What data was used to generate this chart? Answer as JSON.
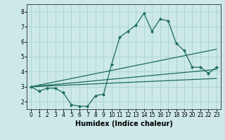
{
  "xlabel": "Humidex (Indice chaleur)",
  "bg_color": "#cce8e8",
  "grid_color": "#aed4d4",
  "line_color": "#1a6b5a",
  "line1_x": [
    0,
    1,
    2,
    3,
    4,
    5,
    6,
    7,
    8,
    9,
    10,
    11,
    12,
    13,
    14,
    15,
    16,
    17,
    18,
    19,
    20,
    21,
    22,
    23
  ],
  "line1_y": [
    3.0,
    2.7,
    2.9,
    2.9,
    2.6,
    1.8,
    1.7,
    1.7,
    2.4,
    2.5,
    4.5,
    6.3,
    6.7,
    7.1,
    7.9,
    6.7,
    7.5,
    7.4,
    5.9,
    5.4,
    4.3,
    4.3,
    3.9,
    4.3
  ],
  "line2_x": [
    0,
    23
  ],
  "line2_y": [
    3.0,
    5.5
  ],
  "line3_x": [
    0,
    23
  ],
  "line3_y": [
    3.0,
    3.55
  ],
  "line4_x": [
    0,
    23
  ],
  "line4_y": [
    3.0,
    4.15
  ],
  "xlim": [
    -0.5,
    23.5
  ],
  "ylim": [
    1.5,
    8.5
  ],
  "xticks": [
    0,
    1,
    2,
    3,
    4,
    5,
    6,
    7,
    8,
    9,
    10,
    11,
    12,
    13,
    14,
    15,
    16,
    17,
    18,
    19,
    20,
    21,
    22,
    23
  ],
  "yticks": [
    2,
    3,
    4,
    5,
    6,
    7,
    8
  ],
  "tick_fontsize": 5.5,
  "xlabel_fontsize": 7.0
}
